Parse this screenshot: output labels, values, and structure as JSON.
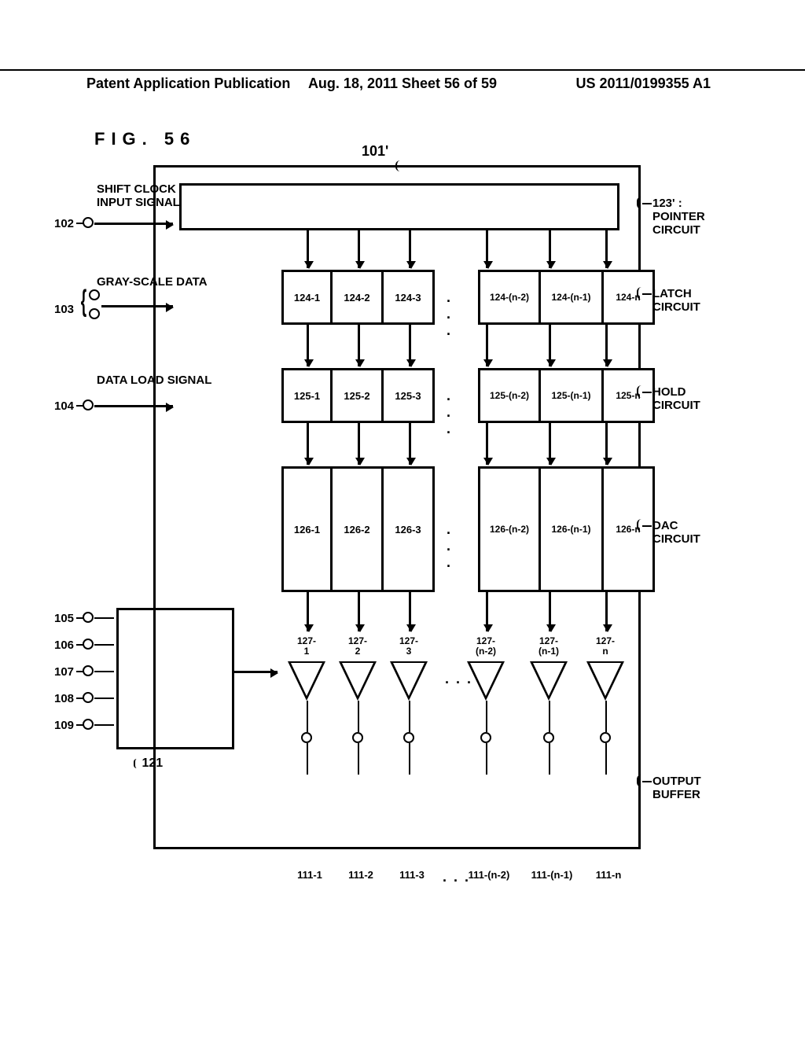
{
  "header": {
    "left": "Patent Application Publication",
    "center": "Aug. 18, 2011  Sheet 56 of 59",
    "right": "US 2011/0199355 A1"
  },
  "figure_label": "FIG. 56",
  "main_ref": "101'",
  "rows": {
    "pointer": {
      "ref": "123'",
      "name": "POINTER CIRCUIT"
    },
    "latch": {
      "prefix": "124",
      "name": "LATCH CIRCUIT"
    },
    "hold": {
      "prefix": "125",
      "name": "HOLD CIRCUIT"
    },
    "dac": {
      "prefix": "126",
      "name": "DAC CIRCUIT"
    },
    "buffer": {
      "prefix": "127",
      "name": "OUTPUT BUFFER"
    },
    "output": {
      "prefix": "111"
    }
  },
  "column_suffixes_left": [
    "1",
    "2",
    "3"
  ],
  "column_suffixes_right": [
    "(n-2)",
    "(n-1)",
    "n"
  ],
  "dots": ". . .",
  "inputs": {
    "shift_clock": {
      "num": "102",
      "label": "SHIFT CLOCK\nINPUT SIGNAL"
    },
    "gray_scale": {
      "num": "103",
      "label": "GRAY-SCALE DATA"
    },
    "data_load": {
      "num": "104",
      "label": "DATA LOAD SIGNAL"
    },
    "gamma_105": {
      "num": "105"
    },
    "gamma_106": {
      "num": "106"
    },
    "gamma_107": {
      "num": "107"
    },
    "gamma_108": {
      "num": "108"
    },
    "gamma_109": {
      "num": "109"
    }
  },
  "block121": "121",
  "colors": {
    "line": "#000000",
    "bg": "#ffffff"
  },
  "fontsizes": {
    "header": 18,
    "fig": 22,
    "cell": 13,
    "label": 15
  }
}
